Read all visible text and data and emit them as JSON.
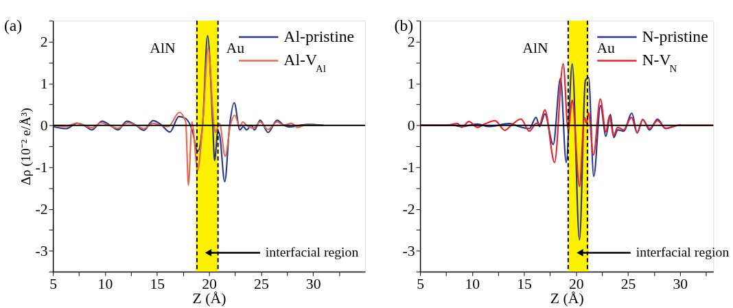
{
  "chart_data": [
    {
      "type": "line",
      "xlabel": "Z (Å)",
      "ylabel": "Δρ (10⁻² e/Å³)",
      "legend": "top right",
      "grid": false,
      "xlim": [
        5,
        35
      ],
      "xticks": [
        5,
        {
          "value": 7.5,
          "label": null
        },
        10,
        {
          "value": 12.5,
          "label": null
        },
        15,
        {
          "value": 17.5,
          "label": null
        },
        20,
        {
          "value": 22.5,
          "label": null
        },
        25,
        {
          "value": 27.5,
          "label": null
        },
        30,
        {
          "value": 32.5,
          "label": null
        }
      ],
      "ylim": [
        -3.5,
        2.5
      ],
      "yticks": [
        {
          "value": -3.5,
          "label": null
        },
        -3,
        {
          "value": -2.5,
          "label": null
        },
        -2,
        {
          "value": -1.5,
          "label": null
        },
        -1,
        {
          "value": -0.5,
          "label": null
        },
        0,
        {
          "value": 0.5,
          "label": null
        },
        1,
        {
          "value": 1.5,
          "label": null
        },
        2,
        {
          "value": 2.5,
          "label": null
        }
      ],
      "bands": [
        {
          "axis": "x",
          "from": 18.73,
          "to": 20.86,
          "color": "#fff200"
        }
      ],
      "ref_lines": [
        {
          "axis": "x",
          "value": 18.84,
          "color": "#000000",
          "line_style": "dashed"
        },
        {
          "axis": "x",
          "value": 20.86,
          "color": "#000000",
          "line_style": "dashed"
        },
        {
          "axis": "y",
          "value": 0,
          "color": "#000000"
        }
      ],
      "series": [
        {
          "name": "Al-pristine",
          "color": "#283593",
          "x": [
            5.0,
            6.26,
            7.34,
            7.99,
            8.75,
            9.73,
            10.49,
            11.25,
            12.11,
            12.98,
            13.74,
            14.61,
            15.37,
            16.24,
            17.1,
            17.76,
            18.41,
            18.9,
            19.38,
            19.86,
            20.36,
            20.53,
            20.85,
            21.01,
            21.51,
            21.98,
            22.42,
            22.96,
            23.29,
            23.61,
            24.05,
            24.37,
            24.91,
            25.67,
            26.54,
            27.19,
            27.73,
            28.82,
            29.47,
            30.99
          ],
          "values": [
            -0.03,
            -0.08,
            0.05,
            0.0,
            -0.11,
            0.1,
            0.0,
            -0.11,
            0.1,
            0.0,
            -0.12,
            0.11,
            0.02,
            -0.16,
            0.21,
            0.16,
            -0.14,
            -0.63,
            0.0,
            2.14,
            0.0,
            -0.84,
            -0.15,
            -0.22,
            -1.35,
            0.0,
            0.54,
            -0.11,
            -0.03,
            -0.11,
            0.0,
            -0.11,
            0.12,
            -0.17,
            0.12,
            0.0,
            -0.04,
            0.0,
            0.02,
            0.0
          ]
        },
        {
          "name": "Al-V$_{Al}$",
          "color": "#e8684a",
          "x": [
            5.0,
            6.26,
            7.23,
            7.99,
            8.75,
            9.62,
            10.38,
            11.25,
            12.22,
            12.98,
            13.74,
            14.61,
            15.37,
            16.09,
            17.15,
            17.76,
            18.02,
            18.36,
            18.9,
            19.38,
            19.92,
            20.47,
            20.62,
            21.01,
            21.55,
            22.05,
            22.46,
            22.96,
            23.24,
            23.61,
            24.26,
            24.91,
            25.67,
            26.54,
            27.19,
            27.91,
            28.49,
            29.25,
            30.99
          ],
          "values": [
            0.0,
            -0.03,
            0.05,
            0.0,
            -0.06,
            0.06,
            0.0,
            -0.07,
            0.06,
            0.0,
            -0.08,
            0.05,
            0.0,
            -0.03,
            0.31,
            0.08,
            -1.43,
            0.08,
            -1.07,
            0.0,
            1.84,
            0.0,
            -0.17,
            0.04,
            -0.74,
            0.0,
            0.24,
            -0.03,
            0.08,
            0.0,
            -0.07,
            0.08,
            -0.1,
            0.08,
            0.0,
            0.05,
            -0.05,
            0.0,
            0.0
          ]
        }
      ],
      "annotations": [
        "(a)",
        "AlN",
        "Au",
        "interfacial region"
      ]
    },
    {
      "type": "line",
      "xlabel": "Z (Å)",
      "legend": "top right",
      "grid": false,
      "xlim": [
        5,
        33.2
      ],
      "xticks": [
        5,
        {
          "value": 7.5,
          "label": null
        },
        10,
        {
          "value": 12.5,
          "label": null
        },
        15,
        {
          "value": 17.5,
          "label": null
        },
        20,
        {
          "value": 22.5,
          "label": null
        },
        25,
        {
          "value": 27.5,
          "label": null
        },
        30,
        {
          "value": 32.5,
          "label": null
        }
      ],
      "ylim": [
        -3.5,
        2.5
      ],
      "yticks": [
        {
          "value": -3.5,
          "label": null
        },
        -3,
        {
          "value": -2.5,
          "label": null
        },
        -2,
        {
          "value": -1.5,
          "label": null
        },
        -1,
        {
          "value": -0.5,
          "label": null
        },
        0,
        {
          "value": 0.5,
          "label": null
        },
        1,
        {
          "value": 1.5,
          "label": null
        },
        2,
        {
          "value": 2.5,
          "label": null
        }
      ],
      "bands": [
        {
          "axis": "x",
          "from": 19.28,
          "to": 21.2,
          "color": "#fff200"
        }
      ],
      "ref_lines": [
        {
          "axis": "x",
          "value": 19.24,
          "color": "#000000",
          "line_style": "dashed"
        },
        {
          "axis": "x",
          "value": 21.09,
          "color": "#000000",
          "line_style": "dashed"
        },
        {
          "axis": "y",
          "value": 0,
          "color": "#000000"
        }
      ],
      "series": [
        {
          "name": "N-pristine",
          "color": "#283593",
          "x": [
            5.0,
            8.15,
            9.0,
            10.5,
            11.6,
            13.6,
            14.5,
            15.5,
            16.15,
            16.5,
            17.0,
            17.8,
            18.5,
            19.05,
            19.63,
            20.33,
            20.89,
            21.2,
            21.7,
            22.35,
            22.87,
            23.3,
            23.63,
            24.0,
            24.57,
            25.37,
            25.87,
            26.41,
            27.07,
            27.83,
            28.6,
            29.9,
            30.1
          ],
          "values": [
            0.0,
            0.0,
            -0.03,
            0.03,
            -0.03,
            0.04,
            -0.03,
            -0.08,
            0.19,
            -0.03,
            0.27,
            -0.46,
            1.12,
            -0.89,
            1.47,
            -2.74,
            1.07,
            1.14,
            -1.22,
            0.47,
            -0.26,
            0.26,
            -0.29,
            -0.11,
            -0.14,
            0.29,
            -0.18,
            0.14,
            -0.11,
            0.15,
            -0.08,
            0.0,
            0.0
          ]
        },
        {
          "name": "N-V$_{N}$",
          "color": "#e8232a",
          "x": [
            5.0,
            7.5,
            8.6,
            9.0,
            9.7,
            10.5,
            11.2,
            12.2,
            13.15,
            13.9,
            14.7,
            15.5,
            16.2,
            16.5,
            17.0,
            17.93,
            18.76,
            19.24,
            19.63,
            20.33,
            20.8,
            21.0,
            21.2,
            21.67,
            22.33,
            22.87,
            23.22,
            23.59,
            24.0,
            24.57,
            25.33,
            25.87,
            26.41,
            27.07,
            27.83,
            28.6,
            29.9,
            33.2
          ],
          "values": [
            0.0,
            0.0,
            0.04,
            -0.05,
            0.09,
            -0.05,
            0.03,
            0.11,
            -0.12,
            0.03,
            0.15,
            -0.14,
            0.05,
            0.03,
            0.37,
            -0.89,
            1.47,
            -0.11,
            0.6,
            -1.46,
            0.19,
            0.05,
            0.3,
            -0.71,
            0.63,
            -0.16,
            0.23,
            -0.25,
            -0.05,
            -0.11,
            0.19,
            -0.18,
            0.13,
            -0.08,
            0.11,
            -0.07,
            0.0,
            0.0
          ]
        }
      ],
      "annotations": [
        "(b)",
        "AlN",
        "Au",
        "interfacial region"
      ]
    }
  ]
}
